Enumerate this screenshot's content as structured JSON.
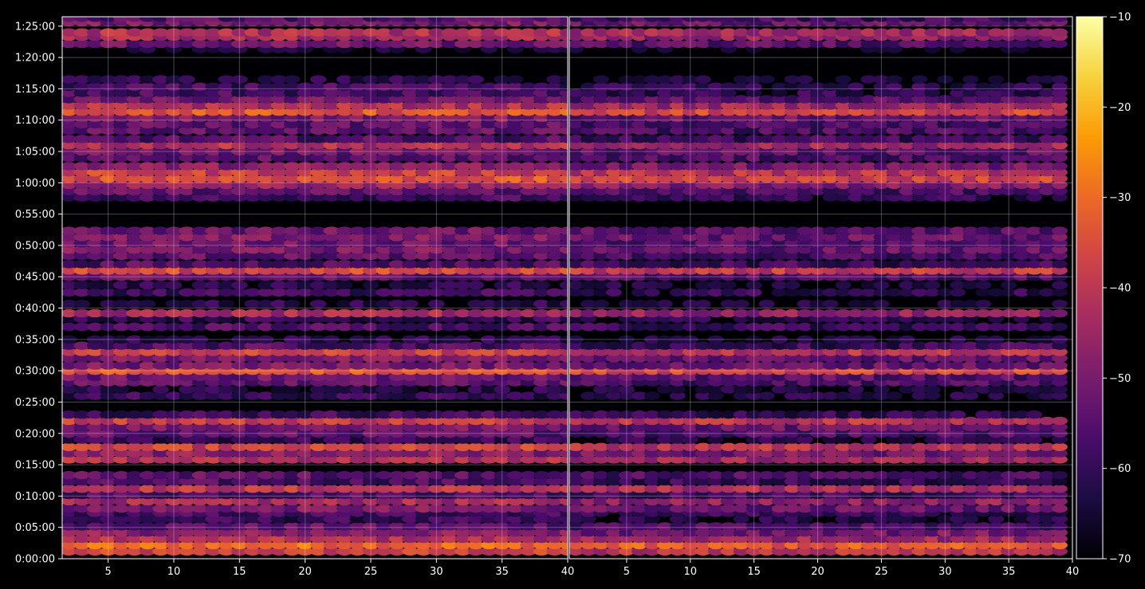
{
  "chart_data": {
    "type": "heatmap",
    "title": "",
    "xlabel": "",
    "ylabel": "",
    "background": "#000000",
    "colormap": "inferno",
    "colormap_stops": [
      "#000004",
      "#1b0c41",
      "#4a0c6b",
      "#781c6d",
      "#a52c60",
      "#cf4446",
      "#ed6925",
      "#fb9b06",
      "#f7d13d",
      "#fcffa4"
    ],
    "grid": true,
    "panels": [
      {
        "xlim": [
          1.5,
          40
        ],
        "xticks": [
          5,
          10,
          15,
          20,
          25,
          30,
          35,
          40
        ],
        "columns": [
          2,
          40
        ]
      },
      {
        "xlim": [
          0.5,
          40
        ],
        "xticks": [
          5,
          10,
          15,
          20,
          25,
          30,
          35,
          40
        ],
        "columns": [
          1,
          39
        ]
      }
    ],
    "y_range_seconds": [
      0,
      5190
    ],
    "yticks": [
      {
        "label": "0:00:00",
        "value": 0
      },
      {
        "label": "0:05:00",
        "value": 300
      },
      {
        "label": "0:10:00",
        "value": 600
      },
      {
        "label": "0:15:00",
        "value": 900
      },
      {
        "label": "0:20:00",
        "value": 1200
      },
      {
        "label": "0:25:00",
        "value": 1500
      },
      {
        "label": "0:30:00",
        "value": 1800
      },
      {
        "label": "0:35:00",
        "value": 2100
      },
      {
        "label": "0:40:00",
        "value": 2400
      },
      {
        "label": "0:45:00",
        "value": 2700
      },
      {
        "label": "0:50:00",
        "value": 3000
      },
      {
        "label": "0:55:00",
        "value": 3300
      },
      {
        "label": "1:00:00",
        "value": 3600
      },
      {
        "label": "1:05:00",
        "value": 3900
      },
      {
        "label": "1:10:00",
        "value": 4200
      },
      {
        "label": "1:15:00",
        "value": 4500
      },
      {
        "label": "1:20:00",
        "value": 4800
      },
      {
        "label": "1:25:00",
        "value": 5100
      }
    ],
    "bands": [
      {
        "t": 70,
        "level": -38
      },
      {
        "t": 130,
        "level": -30
      },
      {
        "t": 190,
        "level": -42
      },
      {
        "t": 250,
        "level": -48
      },
      {
        "t": 310,
        "level": -54
      },
      {
        "t": 380,
        "level": -60
      },
      {
        "t": 440,
        "level": -58
      },
      {
        "t": 480,
        "level": -50
      },
      {
        "t": 550,
        "level": -44
      },
      {
        "t": 610,
        "level": -56
      },
      {
        "t": 670,
        "level": -40
      },
      {
        "t": 740,
        "level": -57
      },
      {
        "t": 800,
        "level": -54
      },
      {
        "t": 950,
        "level": -42
      },
      {
        "t": 1010,
        "level": -48
      },
      {
        "t": 1070,
        "level": -38
      },
      {
        "t": 1140,
        "level": -60
      },
      {
        "t": 1200,
        "level": -54
      },
      {
        "t": 1260,
        "level": -50
      },
      {
        "t": 1320,
        "level": -38
      },
      {
        "t": 1380,
        "level": -58
      },
      {
        "t": 1560,
        "level": -60
      },
      {
        "t": 1620,
        "level": -62
      },
      {
        "t": 1690,
        "level": -54
      },
      {
        "t": 1740,
        "level": -52
      },
      {
        "t": 1800,
        "level": -34
      },
      {
        "t": 1850,
        "level": -50
      },
      {
        "t": 1920,
        "level": -50
      },
      {
        "t": 1980,
        "level": -38
      },
      {
        "t": 2040,
        "level": -56
      },
      {
        "t": 2100,
        "level": -62
      },
      {
        "t": 2220,
        "level": -56
      },
      {
        "t": 2300,
        "level": -60
      },
      {
        "t": 2350,
        "level": -44
      },
      {
        "t": 2440,
        "level": -62
      },
      {
        "t": 2550,
        "level": -58
      },
      {
        "t": 2620,
        "level": -62
      },
      {
        "t": 2700,
        "level": -54
      },
      {
        "t": 2760,
        "level": -36
      },
      {
        "t": 2820,
        "level": -56
      },
      {
        "t": 2900,
        "level": -54
      },
      {
        "t": 2960,
        "level": -50
      },
      {
        "t": 3020,
        "level": -52
      },
      {
        "t": 3080,
        "level": -50
      },
      {
        "t": 3140,
        "level": -52
      },
      {
        "t": 3460,
        "level": -58
      },
      {
        "t": 3520,
        "level": -54
      },
      {
        "t": 3580,
        "level": -46
      },
      {
        "t": 3640,
        "level": -34
      },
      {
        "t": 3700,
        "level": -38
      },
      {
        "t": 3760,
        "level": -48
      },
      {
        "t": 3840,
        "level": -54
      },
      {
        "t": 3900,
        "level": -52
      },
      {
        "t": 3960,
        "level": -42
      },
      {
        "t": 4020,
        "level": -56
      },
      {
        "t": 4100,
        "level": -54
      },
      {
        "t": 4160,
        "level": -54
      },
      {
        "t": 4220,
        "level": -50
      },
      {
        "t": 4280,
        "level": -34
      },
      {
        "t": 4340,
        "level": -42
      },
      {
        "t": 4400,
        "level": -52
      },
      {
        "t": 4460,
        "level": -58
      },
      {
        "t": 4520,
        "level": -58
      },
      {
        "t": 4590,
        "level": -62
      },
      {
        "t": 4880,
        "level": -66
      },
      {
        "t": 4930,
        "level": -52
      },
      {
        "t": 5000,
        "level": -44
      },
      {
        "t": 5040,
        "level": -42
      },
      {
        "t": 5140,
        "level": -50
      },
      {
        "t": 5180,
        "level": -56
      }
    ],
    "colorbar": {
      "range": [
        -70,
        -10
      ],
      "ticks": [
        {
          "label": "−10",
          "value": -10
        },
        {
          "label": "−20",
          "value": -20
        },
        {
          "label": "−30",
          "value": -30
        },
        {
          "label": "−40",
          "value": -40
        },
        {
          "label": "−50",
          "value": -50
        },
        {
          "label": "−60",
          "value": -60
        },
        {
          "label": "−70",
          "value": -70
        }
      ]
    }
  }
}
